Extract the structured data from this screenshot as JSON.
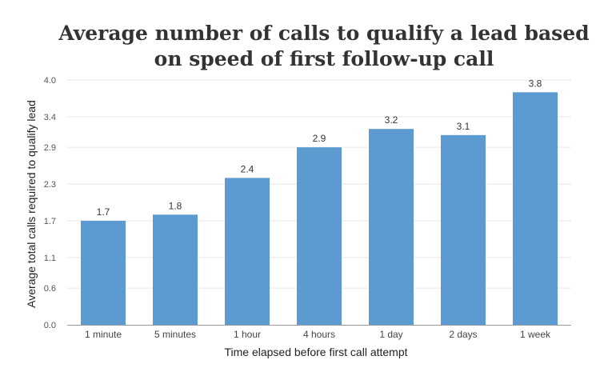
{
  "chart_data": {
    "type": "bar",
    "title": "Average number of calls to qualify a lead based on speed of first follow-up call",
    "xlabel": "Time elapsed before first call attempt",
    "ylabel": "Average total calls required to qualify lead",
    "categories": [
      "1 minute",
      "5 minutes",
      "1 hour",
      "4 hours",
      "1 day",
      "2 days",
      "1 week"
    ],
    "values": [
      1.7,
      1.8,
      2.4,
      2.9,
      3.2,
      3.1,
      3.8
    ],
    "value_labels": [
      "1.7",
      "1.8",
      "2.4",
      "2.9",
      "3.2",
      "3.1",
      "3.8"
    ],
    "yticks": [
      0.0,
      0.6,
      1.1,
      1.7,
      2.3,
      2.9,
      3.4,
      4.0
    ],
    "ytick_labels": [
      "0.0",
      "0.6",
      "1.1",
      "1.7",
      "2.3",
      "2.9",
      "3.4",
      "4.0"
    ],
    "ylim": [
      0,
      4.0
    ],
    "grid": true,
    "bar_color": "#5b9bd1",
    "grid_color": "#e6e6e6",
    "axis_color": "#9a9a9a"
  }
}
